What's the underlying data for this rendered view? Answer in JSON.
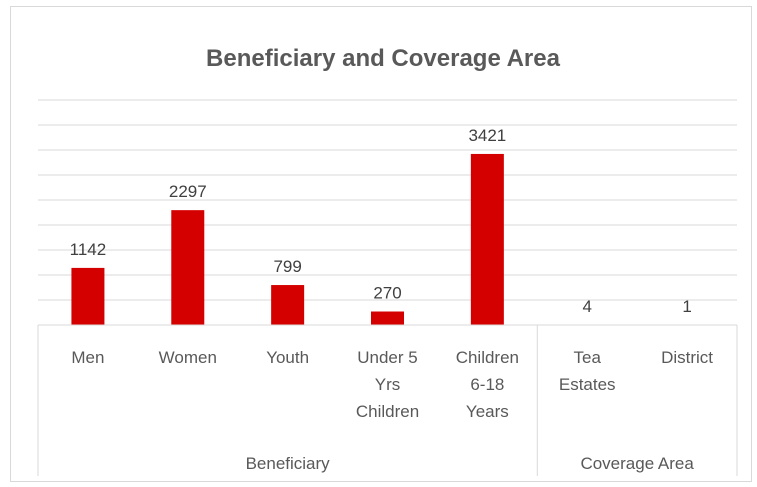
{
  "chart_data": {
    "type": "bar",
    "title": "Beneficiary and Coverage Area",
    "categories": [
      "Men",
      "Women",
      "Youth",
      "Under 5 Yrs Children",
      "Children 6-18 Years",
      "Tea Estates",
      "District"
    ],
    "category_lines": [
      [
        "Men"
      ],
      [
        "Women"
      ],
      [
        "Youth"
      ],
      [
        "Under 5",
        "Yrs",
        "Children"
      ],
      [
        "Children",
        "6-18",
        "Years"
      ],
      [
        "Tea",
        "Estates"
      ],
      [
        "District"
      ]
    ],
    "values": [
      1142,
      2297,
      799,
      270,
      3421,
      4,
      1
    ],
    "groups": [
      {
        "label": "Beneficiary",
        "count": 5
      },
      {
        "label": "Coverage Area",
        "count": 2
      }
    ],
    "bar_color": "#d40000",
    "gridline_color": "#d9d9d9",
    "ylim": [
      0,
      4500
    ],
    "grid": true,
    "legend": "none"
  }
}
